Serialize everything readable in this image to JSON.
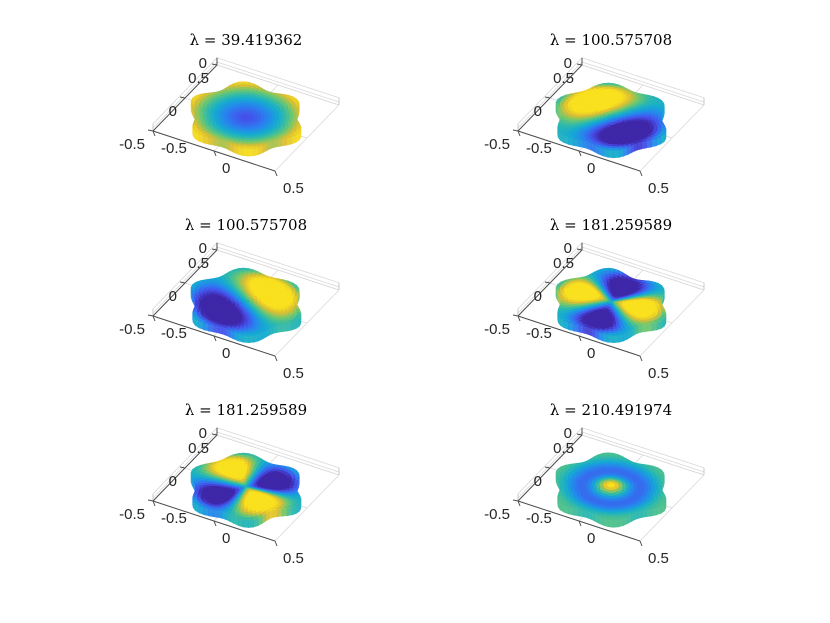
{
  "figure": {
    "colors": {
      "low": "#3e26a8",
      "mid": "#2ab8b0",
      "high": "#f9e11e",
      "axis": "#4d4d4d",
      "grid": "#d9d9d9"
    },
    "colormap": "parula"
  },
  "chart_data": [
    {
      "type": "surface",
      "title": "λ = 39.419362",
      "mode": "radial0",
      "xticks": [
        "-0.5",
        "0",
        "0.5"
      ],
      "yticks": [
        "-0.5",
        "0",
        "0.5"
      ],
      "zticks": [
        "0"
      ],
      "xlim": [
        -0.5,
        0.5
      ],
      "ylim": [
        -0.5,
        0.5
      ],
      "grid": true
    },
    {
      "type": "surface",
      "title": "λ = 100.575708",
      "mode": "dipole1",
      "xticks": [
        "-0.5",
        "0",
        "0.5"
      ],
      "yticks": [
        "-0.5",
        "0",
        "0.5"
      ],
      "zticks": [
        "0"
      ],
      "xlim": [
        -0.5,
        0.5
      ],
      "ylim": [
        -0.5,
        0.5
      ],
      "grid": true
    },
    {
      "type": "surface",
      "title": "λ = 100.575708",
      "mode": "dipole2",
      "xticks": [
        "-0.5",
        "0",
        "0.5"
      ],
      "yticks": [
        "-0.5",
        "0",
        "0.5"
      ],
      "zticks": [
        "0"
      ],
      "xlim": [
        -0.5,
        0.5
      ],
      "ylim": [
        -0.5,
        0.5
      ],
      "grid": true
    },
    {
      "type": "surface",
      "title": "λ = 181.259589",
      "mode": "quad1",
      "xticks": [
        "-0.5",
        "0",
        "0.5"
      ],
      "yticks": [
        "-0.5",
        "0",
        "0.5"
      ],
      "zticks": [
        "0"
      ],
      "xlim": [
        -0.5,
        0.5
      ],
      "ylim": [
        -0.5,
        0.5
      ],
      "grid": true
    },
    {
      "type": "surface",
      "title": "λ = 181.259589",
      "mode": "quad2",
      "xticks": [
        "-0.5",
        "0",
        "0.5"
      ],
      "yticks": [
        "-0.5",
        "0",
        "0.5"
      ],
      "zticks": [
        "0"
      ],
      "xlim": [
        -0.5,
        0.5
      ],
      "ylim": [
        -0.5,
        0.5
      ],
      "grid": true
    },
    {
      "type": "surface",
      "title": "λ = 210.491974",
      "mode": "radial1",
      "xticks": [
        "-0.5",
        "0",
        "0.5"
      ],
      "yticks": [
        "-0.5",
        "0",
        "0.5"
      ],
      "zticks": [
        "0"
      ],
      "xlim": [
        -0.5,
        0.5
      ],
      "ylim": [
        -0.5,
        0.5
      ],
      "grid": true
    }
  ]
}
